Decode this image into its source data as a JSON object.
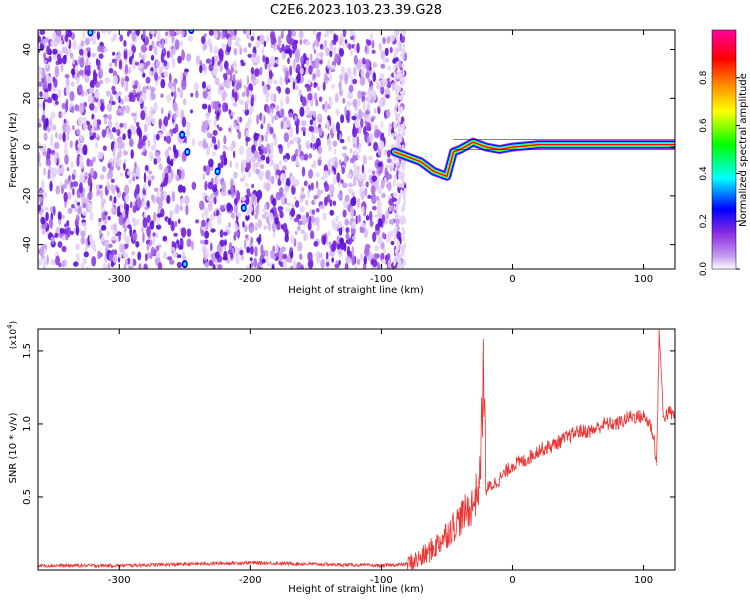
{
  "title": "C2E6.2023.103.23.39.G28",
  "chart_data": [
    {
      "type": "heatmap",
      "xlabel": "Height of straight line (km)",
      "ylabel": "Frequency (Hz)",
      "xlim": [
        -362,
        124
      ],
      "ylim": [
        -50,
        48
      ],
      "xticks": [
        -300,
        -200,
        -100,
        0,
        100
      ],
      "xtick_labels": [
        "-300",
        "-200",
        "-100",
        "0",
        "100"
      ],
      "yticks": [
        -40,
        -20,
        0,
        20,
        40
      ],
      "ytick_labels": [
        "-40",
        "-20",
        "0",
        "20",
        "40"
      ],
      "colorbar": {
        "label": "Normalized spectral amplitude",
        "range": [
          0,
          1
        ],
        "ticks": [
          0.0,
          0.2,
          0.4,
          0.6,
          0.8
        ],
        "tick_labels": [
          "0.0",
          "0.2",
          "0.4",
          "0.6",
          "0.8"
        ],
        "colors": [
          "#ffffff",
          "#8a2be2",
          "#0000ff",
          "#00ffff",
          "#00ff00",
          "#ffff00",
          "#ff8000",
          "#ff0000",
          "#ff00a0"
        ]
      },
      "signal_trace": {
        "x": [
          -90,
          -80,
          -70,
          -60,
          -50,
          -45,
          -40,
          -30,
          -20,
          -10,
          0,
          20,
          40,
          60,
          80,
          100,
          110,
          124
        ],
        "y": [
          -2,
          -4,
          -6,
          -10,
          -12,
          -2,
          -1,
          2,
          0,
          -1,
          0,
          1,
          1,
          1,
          1,
          1,
          1,
          1
        ]
      }
    },
    {
      "type": "line",
      "xlabel": "Height of straight line (km)",
      "ylabel": "SNR (10 * v/v)",
      "y_multiplier_label": "(x10",
      "y_multiplier_exp": "4",
      "y_multiplier_close": ")",
      "xlim": [
        -362,
        124
      ],
      "ylim": [
        0.0,
        1.65
      ],
      "xticks": [
        -300,
        -200,
        -100,
        0,
        100
      ],
      "xtick_labels": [
        "-300",
        "-200",
        "-100",
        "0",
        "100"
      ],
      "yticks": [
        0.5,
        1.0,
        1.5
      ],
      "ytick_labels": [
        "0.5",
        "1.0",
        "1.5"
      ],
      "series": [
        {
          "color": "#ee3333",
          "x": [
            -362,
            -300,
            -250,
            -200,
            -150,
            -100,
            -80,
            -70,
            -60,
            -50,
            -40,
            -30,
            -25,
            -22,
            -20,
            -10,
            0,
            10,
            20,
            30,
            40,
            50,
            60,
            70,
            80,
            90,
            100,
            105,
            108,
            110,
            112,
            115,
            120,
            124
          ],
          "y": [
            0.03,
            0.03,
            0.04,
            0.05,
            0.04,
            0.03,
            0.04,
            0.08,
            0.15,
            0.25,
            0.35,
            0.45,
            0.6,
            1.37,
            0.55,
            0.62,
            0.72,
            0.75,
            0.82,
            0.85,
            0.9,
            0.95,
            0.95,
            1.0,
            1.0,
            1.05,
            1.05,
            1.0,
            0.9,
            0.72,
            1.65,
            1.05,
            1.08,
            1.05
          ]
        }
      ]
    }
  ]
}
